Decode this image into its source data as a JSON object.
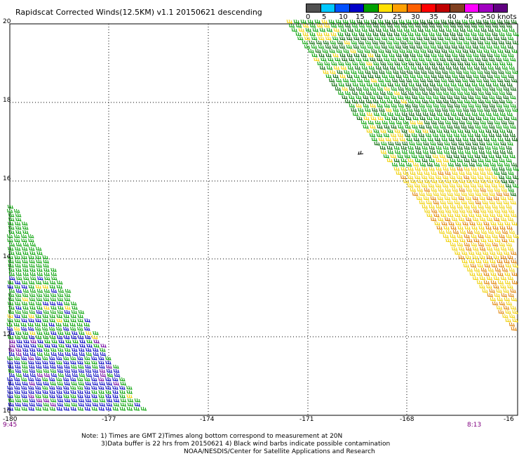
{
  "title": "Rapidscat Corrected Winds(12.5KM) v1.1 20150621 descending",
  "legend": {
    "colors": [
      "#505050",
      "#00c8ff",
      "#0050ff",
      "#0000c8",
      "#00a000",
      "#ffe000",
      "#ffa000",
      "#ff6000",
      "#ff0000",
      "#c00000",
      "#804020",
      "#ff00ff",
      "#a000c0",
      "#600080"
    ],
    "labels": [
      "0",
      "5",
      "10",
      "15",
      "20",
      "25",
      "30",
      "35",
      "40",
      "45",
      ">50 knots"
    ]
  },
  "axes": {
    "x_labels": [
      "-180",
      "-177",
      "-174",
      "-171",
      "-168",
      "-16"
    ],
    "y_labels": [
      "20",
      "18",
      "16",
      "14",
      "12",
      "10"
    ]
  },
  "times": {
    "left": "9:45",
    "right": "8:13"
  },
  "notes": {
    "line1": "Note: 1) Times are GMT 2)Times along bottom correspond to measurement at 20N",
    "line2": "3)Data buffer is 22 hrs from 20150621 4) Black wind barbs indicate possible contamination",
    "line3": "NOAA/NESDIS/Center for Satellite Applications and Research"
  },
  "colors": {
    "barb_green": "#00a000",
    "barb_dark_green": "#006400",
    "barb_yellow": "#f0d000",
    "barb_orange": "#e08000",
    "barb_blue": "#0000c0",
    "barb_purple": "#7000a0",
    "time_label": "#800080"
  }
}
